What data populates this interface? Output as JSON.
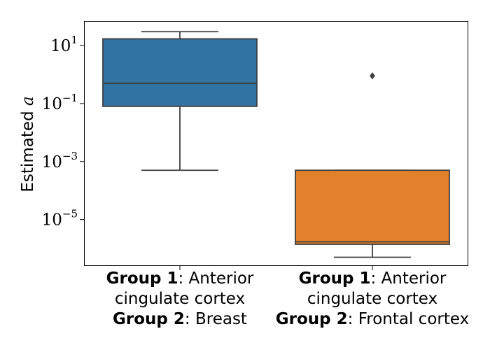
{
  "chart_data": {
    "type": "box",
    "ylabel": "Estimated a",
    "ylabel_text": "Estimated",
    "ylabel_var": "a",
    "yscale": "log",
    "ylim": [
      2.5e-07,
      70
    ],
    "yticks": [
      {
        "value": 10,
        "base": "10",
        "exp": "1"
      },
      {
        "value": 0.1,
        "base": "10",
        "exp": "−1"
      },
      {
        "value": 0.001,
        "base": "10",
        "exp": "−3"
      },
      {
        "value": 1e-05,
        "base": "10",
        "exp": "−5"
      }
    ],
    "grid": false,
    "categories": [
      {
        "lines": [
          {
            "bold": "Group 1",
            "rest": ": Anterior"
          },
          {
            "bold": "",
            "rest": "cingulate cortex"
          },
          {
            "bold": "Group 2",
            "rest": ": Breast"
          }
        ]
      },
      {
        "lines": [
          {
            "bold": "Group 1",
            "rest": ": Anterior"
          },
          {
            "bold": "",
            "rest": "cingulate cortex"
          },
          {
            "bold": "Group 2",
            "rest": ": Frontal cortex"
          }
        ]
      }
    ],
    "series": [
      {
        "whisker_low": 0.0005,
        "q1": 0.08,
        "median": 0.5,
        "q3": 17,
        "whisker_high": 30,
        "outliers": [],
        "color": "#3274a1"
      },
      {
        "whisker_low": 5e-07,
        "q1": 1.4e-06,
        "median": 1.7e-06,
        "q3": 0.0005,
        "whisker_high": 0.0005,
        "outliers": [
          0.9
        ],
        "color": "#e1812c"
      }
    ]
  }
}
